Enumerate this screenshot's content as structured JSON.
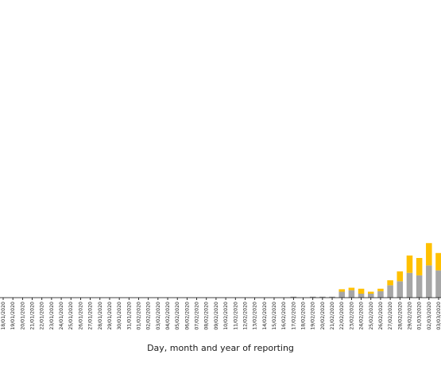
{
  "chart_data": {
    "type": "bar",
    "stacked": true,
    "xlabel": "Day, month and year of reporting",
    "ylabel": "",
    "title": "",
    "categories": [
      "18/01/2020",
      "19/01/2020",
      "20/01/2020",
      "21/01/2020",
      "22/01/2020",
      "23/01/2020",
      "24/01/2020",
      "25/01/2020",
      "26/01/2020",
      "27/01/2020",
      "28/01/2020",
      "29/01/2020",
      "30/01/2020",
      "31/01/2020",
      "01/02/2020",
      "02/02/2020",
      "03/02/2020",
      "04/02/2020",
      "05/02/2020",
      "06/02/2020",
      "07/02/2020",
      "08/02/2020",
      "09/02/2020",
      "10/02/2020",
      "11/02/2020",
      "12/02/2020",
      "13/02/2020",
      "14/02/2020",
      "15/02/2020",
      "16/02/2020",
      "17/02/2020",
      "18/02/2020",
      "19/02/2020",
      "20/02/2020",
      "21/02/2020",
      "22/02/2020",
      "23/02/2020",
      "24/02/2020",
      "25/02/2020",
      "26/02/2020",
      "27/02/2020",
      "28/02/2020",
      "29/02/2020",
      "01/03/2020",
      "02/03/2020",
      "03/03/2020"
    ],
    "series": [
      {
        "color": "#a6a6a6",
        "values": [
          0,
          0,
          0,
          0,
          0,
          0,
          0,
          0,
          0,
          0,
          0,
          0,
          0,
          0,
          0,
          0,
          0,
          0,
          0,
          0,
          0,
          0,
          0,
          0,
          0,
          0,
          0,
          0,
          0,
          0,
          0,
          0,
          0,
          0,
          0,
          0,
          0,
          0,
          0,
          0,
          0,
          0,
          0,
          0,
          0,
          0
        ]
      },
      {
        "color": "#ffc000",
        "values": [
          0,
          0,
          0,
          0,
          0,
          0,
          0,
          0,
          0,
          0,
          0,
          0,
          0,
          0,
          0,
          0,
          0,
          0,
          0,
          0,
          0,
          0,
          0,
          0,
          0,
          0,
          0,
          0,
          0,
          0,
          0,
          0,
          0,
          0,
          0,
          0,
          0,
          0,
          0,
          0,
          0,
          0,
          0,
          0,
          0,
          0
        ]
      }
    ],
    "stack_values": {
      "grey": [
        0,
        0,
        0,
        0,
        0,
        0,
        0,
        0,
        0,
        0,
        0,
        0,
        0,
        0,
        0,
        0,
        0,
        0,
        0,
        0,
        0,
        0,
        0,
        0,
        0,
        0,
        0,
        0,
        0,
        0,
        0.2,
        0,
        0.2,
        0.2,
        0.2,
        1.2,
        1.5,
        0.8,
        0.8,
        1.3,
        2.5,
        3.3,
        5.0,
        4.5,
        6.5,
        5.5
      ],
      "yellow": [
        0,
        0,
        0,
        0,
        0,
        0,
        0,
        0,
        0,
        0,
        0,
        0,
        0,
        0,
        0,
        0,
        0,
        0,
        0,
        0,
        0,
        0,
        0,
        0,
        0,
        0,
        0,
        0,
        0,
        0,
        0,
        0,
        0,
        0,
        0,
        0.5,
        0.5,
        1.0,
        0.4,
        0.5,
        1.0,
        2.0,
        3.5,
        3.5,
        4.5,
        3.5
      ]
    },
    "ylim": [
      0,
      60
    ],
    "grid": false,
    "legend": "none"
  }
}
